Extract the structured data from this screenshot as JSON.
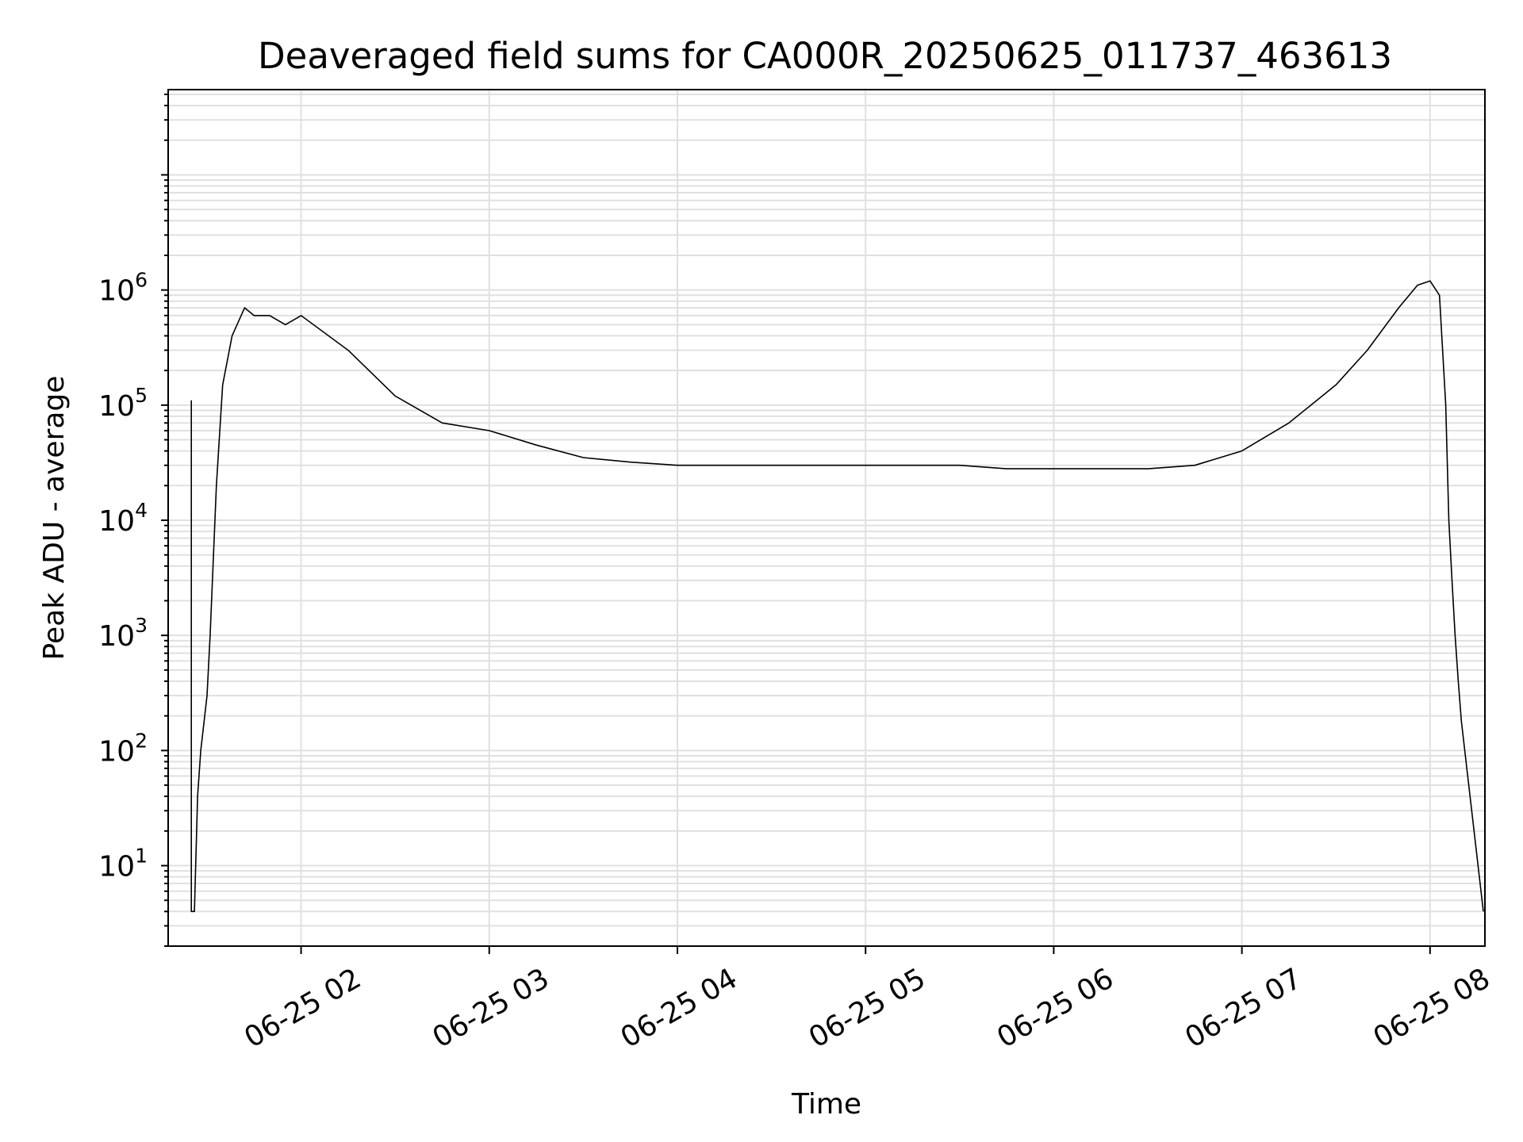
{
  "chart_data": {
    "type": "line",
    "title": "Deaveraged field sums for CA000R_20250625_011737_463613",
    "xlabel": "Time",
    "ylabel": "Peak ADU - average",
    "yscale": "log",
    "grid": true,
    "line_color": "#000000",
    "grid_color": "#e0e0e0",
    "xlim": [
      "06-25 01:17:37",
      "06-25 08:17:30"
    ],
    "ylim": [
      2,
      55000000
    ],
    "x_tick_labels": [
      "06-25 02",
      "06-25 03",
      "06-25 04",
      "06-25 05",
      "06-25 06",
      "06-25 07",
      "06-25 08"
    ],
    "y_tick_labels": [
      {
        "base": "10",
        "exp": "1",
        "value": 10
      },
      {
        "base": "10",
        "exp": "2",
        "value": 100
      },
      {
        "base": "10",
        "exp": "3",
        "value": 1000
      },
      {
        "base": "10",
        "exp": "4",
        "value": 10000
      },
      {
        "base": "10",
        "exp": "5",
        "value": 100000
      },
      {
        "base": "10",
        "exp": "6",
        "value": 1000000
      }
    ],
    "series": [
      {
        "x": [
          "06-25 01:25",
          "06-25 01:25",
          "06-25 01:26",
          "06-25 01:27",
          "06-25 01:28",
          "06-25 01:30",
          "06-25 01:31",
          "06-25 01:33",
          "06-25 01:35",
          "06-25 01:38",
          "06-25 01:42",
          "06-25 01:45",
          "06-25 01:50",
          "06-25 01:55",
          "06-25 02:00",
          "06-25 02:15",
          "06-25 02:30",
          "06-25 02:45",
          "06-25 03:00",
          "06-25 03:15",
          "06-25 03:30",
          "06-25 03:45",
          "06-25 04:00",
          "06-25 04:15",
          "06-25 04:30",
          "06-25 04:45",
          "06-25 05:00",
          "06-25 05:15",
          "06-25 05:30",
          "06-25 05:45",
          "06-25 06:00",
          "06-25 06:15",
          "06-25 06:30",
          "06-25 06:45",
          "06-25 07:00",
          "06-25 07:15",
          "06-25 07:30",
          "06-25 07:40",
          "06-25 07:50",
          "06-25 07:56",
          "06-25 08:00",
          "06-25 08:03",
          "06-25 08:05",
          "06-25 08:06",
          "06-25 08:07",
          "06-25 08:08",
          "06-25 08:09",
          "06-25 08:10",
          "06-25 08:17"
        ],
        "y": [
          110000,
          4,
          4,
          40,
          100,
          300,
          1000,
          20000,
          150000,
          400000,
          700000,
          600000,
          600000,
          500000,
          600000,
          300000,
          120000,
          70000,
          60000,
          45000,
          35000,
          32000,
          30000,
          30000,
          30000,
          30000,
          30000,
          30000,
          30000,
          28000,
          28000,
          28000,
          28000,
          30000,
          40000,
          70000,
          150000,
          300000,
          700000,
          1100000,
          1200000,
          900000,
          100000,
          10000,
          3000,
          1000,
          400,
          180,
          4
        ]
      }
    ]
  }
}
